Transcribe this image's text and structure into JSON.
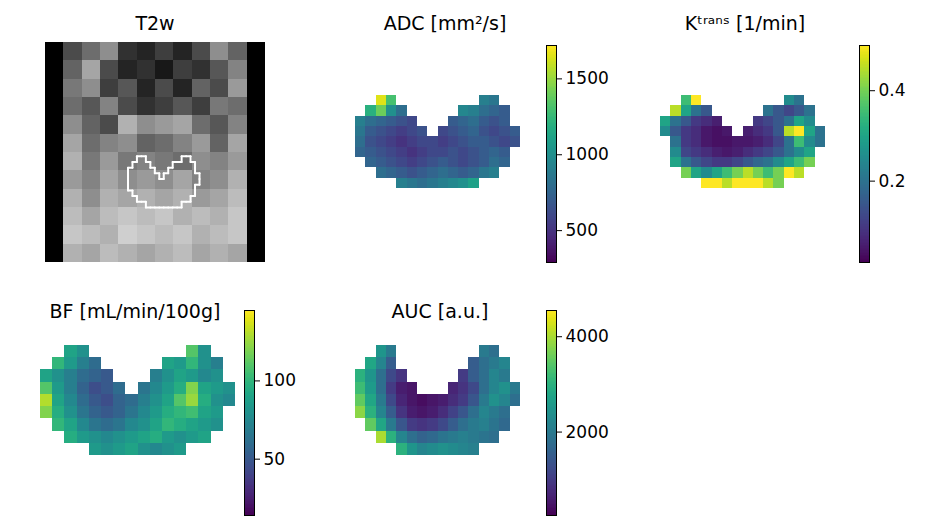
{
  "chart_data": [
    {
      "type": "image",
      "title": "T2w",
      "color": "greys",
      "intensity_range": [
        0,
        255
      ],
      "cells": [
        [
          0,
          60,
          90,
          120,
          40,
          30,
          50,
          30,
          60,
          120,
          80,
          0
        ],
        [
          0,
          80,
          140,
          60,
          30,
          40,
          20,
          50,
          40,
          70,
          110,
          0
        ],
        [
          0,
          100,
          120,
          50,
          70,
          30,
          60,
          30,
          80,
          60,
          130,
          0
        ],
        [
          0,
          90,
          70,
          110,
          60,
          40,
          50,
          70,
          50,
          100,
          90,
          0
        ],
        [
          0,
          120,
          80,
          60,
          150,
          120,
          130,
          140,
          90,
          70,
          110,
          0
        ],
        [
          0,
          140,
          90,
          110,
          120,
          80,
          90,
          110,
          130,
          80,
          140,
          0
        ],
        [
          0,
          150,
          100,
          130,
          100,
          110,
          100,
          90,
          120,
          110,
          130,
          0
        ],
        [
          0,
          130,
          110,
          140,
          120,
          130,
          120,
          140,
          110,
          120,
          150,
          0
        ],
        [
          0,
          150,
          120,
          150,
          140,
          150,
          140,
          150,
          130,
          140,
          160,
          0
        ],
        [
          0,
          160,
          140,
          160,
          170,
          160,
          170,
          150,
          160,
          150,
          170,
          0
        ],
        [
          0,
          170,
          160,
          150,
          180,
          170,
          160,
          170,
          150,
          160,
          170,
          0
        ],
        [
          0,
          150,
          140,
          160,
          150,
          140,
          150,
          160,
          140,
          150,
          140,
          0
        ]
      ]
    },
    {
      "type": "heatmap",
      "title": "ADC [mm²/s]",
      "color": "viridis",
      "colorbar_range": [
        290,
        1720
      ],
      "colorbar_ticks": [
        500,
        1000,
        1500
      ],
      "cells": [
        [
          null,
          null,
          1650,
          1300,
          null,
          null,
          null,
          null,
          null,
          null,
          null,
          null,
          900,
          850,
          null,
          null
        ],
        [
          null,
          1200,
          1400,
          1000,
          800,
          null,
          null,
          null,
          null,
          null,
          950,
          900,
          800,
          750,
          700,
          null
        ],
        [
          900,
          800,
          750,
          700,
          650,
          600,
          null,
          null,
          null,
          700,
          750,
          800,
          700,
          650,
          700,
          null
        ],
        [
          850,
          700,
          650,
          600,
          550,
          600,
          650,
          null,
          600,
          650,
          700,
          750,
          650,
          600,
          650,
          700
        ],
        [
          800,
          650,
          600,
          550,
          500,
          550,
          600,
          600,
          550,
          600,
          650,
          700,
          700,
          650,
          600,
          650
        ],
        [
          750,
          700,
          650,
          600,
          550,
          500,
          550,
          600,
          600,
          650,
          600,
          650,
          700,
          750,
          700,
          null
        ],
        [
          null,
          750,
          700,
          650,
          600,
          550,
          600,
          650,
          700,
          650,
          600,
          650,
          700,
          800,
          750,
          null
        ],
        [
          null,
          null,
          800,
          750,
          700,
          650,
          700,
          750,
          800,
          750,
          700,
          750,
          850,
          900,
          null,
          null
        ],
        [
          null,
          null,
          null,
          null,
          900,
          850,
          800,
          850,
          900,
          950,
          1000,
          1100,
          null,
          null,
          null,
          null
        ]
      ]
    },
    {
      "type": "heatmap",
      "title": "Kᵗʳᵃⁿˢ [1/min]",
      "color": "viridis",
      "colorbar_range": [
        0.02,
        0.5
      ],
      "colorbar_ticks": [
        0.2,
        0.4
      ],
      "cells": [
        [
          null,
          null,
          0.35,
          0.5,
          null,
          null,
          null,
          null,
          null,
          null,
          null,
          null,
          0.25,
          0.2,
          null,
          null
        ],
        [
          null,
          0.45,
          0.3,
          0.2,
          0.15,
          null,
          null,
          null,
          null,
          null,
          0.2,
          0.15,
          0.12,
          0.15,
          0.2,
          null
        ],
        [
          0.3,
          0.2,
          0.15,
          0.1,
          0.08,
          0.06,
          null,
          null,
          null,
          0.1,
          0.12,
          0.15,
          0.2,
          0.3,
          0.25,
          null
        ],
        [
          0.25,
          0.15,
          0.1,
          0.08,
          0.05,
          0.04,
          0.05,
          null,
          0.06,
          0.08,
          0.1,
          0.15,
          0.45,
          0.5,
          0.3,
          0.2
        ],
        [
          null,
          0.2,
          0.1,
          0.08,
          0.05,
          0.04,
          0.04,
          0.05,
          0.05,
          0.06,
          0.08,
          0.12,
          0.2,
          0.35,
          0.25,
          0.2
        ],
        [
          null,
          0.25,
          0.12,
          0.1,
          0.08,
          0.06,
          0.05,
          0.06,
          0.08,
          0.1,
          0.12,
          0.15,
          0.2,
          0.25,
          0.3,
          null
        ],
        [
          null,
          0.3,
          0.2,
          0.15,
          0.12,
          0.1,
          0.1,
          0.12,
          0.15,
          0.18,
          0.2,
          0.25,
          0.3,
          0.35,
          0.4,
          null
        ],
        [
          null,
          null,
          0.4,
          0.3,
          0.25,
          0.3,
          0.35,
          0.4,
          0.45,
          0.4,
          0.35,
          0.4,
          0.5,
          0.45,
          null,
          null
        ],
        [
          null,
          null,
          null,
          null,
          0.5,
          0.5,
          0.45,
          0.5,
          0.5,
          0.5,
          0.45,
          0.4,
          null,
          null,
          null,
          null
        ]
      ]
    },
    {
      "type": "heatmap",
      "title": "BF [mL/min/100g]",
      "color": "viridis",
      "colorbar_range": [
        14,
        145
      ],
      "colorbar_ticks": [
        50,
        100
      ],
      "cells": [
        [
          null,
          null,
          90,
          80,
          null,
          null,
          null,
          null,
          null,
          null,
          null,
          null,
          110,
          80,
          null,
          null
        ],
        [
          null,
          100,
          85,
          70,
          60,
          null,
          null,
          null,
          null,
          null,
          90,
          85,
          100,
          80,
          70,
          null
        ],
        [
          90,
          80,
          70,
          60,
          55,
          50,
          null,
          null,
          null,
          70,
          80,
          90,
          85,
          75,
          80,
          null
        ],
        [
          110,
          85,
          70,
          55,
          45,
          50,
          60,
          null,
          65,
          75,
          85,
          95,
          120,
          90,
          85,
          80
        ],
        [
          130,
          90,
          75,
          60,
          50,
          45,
          55,
          60,
          70,
          80,
          90,
          110,
          125,
          95,
          80,
          75
        ],
        [
          120,
          95,
          80,
          65,
          55,
          50,
          55,
          65,
          75,
          85,
          95,
          100,
          105,
          90,
          85,
          null
        ],
        [
          null,
          100,
          90,
          75,
          65,
          60,
          65,
          75,
          80,
          90,
          100,
          95,
          90,
          85,
          80,
          null
        ],
        [
          null,
          null,
          95,
          85,
          80,
          75,
          80,
          85,
          90,
          95,
          85,
          80,
          85,
          90,
          null,
          null
        ],
        [
          null,
          null,
          null,
          null,
          85,
          80,
          85,
          90,
          80,
          75,
          80,
          85,
          null,
          null,
          null,
          null
        ]
      ]
    },
    {
      "type": "heatmap",
      "title": "AUC [a.u.]",
      "color": "viridis",
      "colorbar_range": [
        250,
        4550
      ],
      "colorbar_ticks": [
        2000,
        4000
      ],
      "cells": [
        [
          null,
          null,
          2500,
          2000,
          null,
          null,
          null,
          null,
          null,
          null,
          null,
          null,
          2000,
          1800,
          null,
          null
        ],
        [
          null,
          2800,
          2200,
          1500,
          null,
          null,
          null,
          null,
          null,
          null,
          null,
          1500,
          1800,
          2000,
          2200,
          null
        ],
        [
          3000,
          2500,
          1800,
          1200,
          900,
          null,
          null,
          null,
          null,
          null,
          1000,
          1500,
          1800,
          2200,
          2000,
          null
        ],
        [
          3200,
          2600,
          1800,
          1000,
          600,
          500,
          null,
          null,
          null,
          700,
          900,
          1200,
          1800,
          2200,
          2400,
          2000
        ],
        [
          3500,
          2800,
          2000,
          1200,
          700,
          500,
          400,
          500,
          600,
          800,
          1000,
          1400,
          2000,
          2400,
          2200,
          1800
        ],
        [
          3800,
          3000,
          2200,
          1500,
          900,
          600,
          500,
          600,
          800,
          1100,
          1400,
          1800,
          2200,
          2000,
          1800,
          null
        ],
        [
          null,
          3500,
          2800,
          2000,
          1400,
          1000,
          900,
          1000,
          1200,
          1500,
          1800,
          2000,
          2100,
          1900,
          1700,
          null
        ],
        [
          null,
          null,
          4000,
          3000,
          2200,
          1800,
          1600,
          1700,
          1900,
          2000,
          2100,
          2000,
          1900,
          1800,
          null,
          null
        ],
        [
          null,
          null,
          null,
          null,
          3000,
          2500,
          2200,
          2300,
          2400,
          2300,
          2200,
          2100,
          null,
          null,
          null,
          null
        ]
      ]
    }
  ]
}
